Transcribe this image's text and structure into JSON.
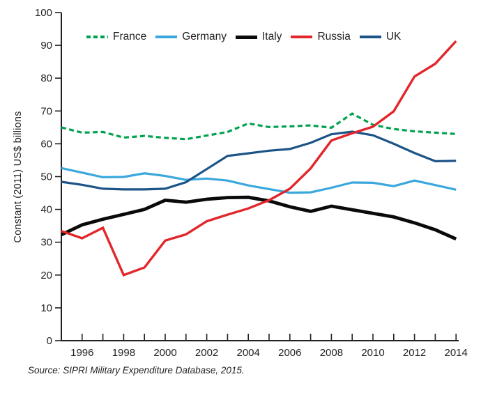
{
  "figure": {
    "y_axis_label": "Constant (2011) US$ billions",
    "source_note": "Source:  SIPRI Military Expenditure Database, 2015."
  },
  "chart_data": {
    "type": "line",
    "title": "",
    "xlabel": "",
    "ylabel": "Constant (2011) US$ billions",
    "source": "Source:  SIPRI Military Expenditure Database, 2015.",
    "grid": false,
    "legend_position": "top-inside",
    "ylim": [
      0,
      100
    ],
    "ytick_step": 10,
    "x": [
      1995,
      1996,
      1997,
      1998,
      1999,
      2000,
      2001,
      2002,
      2003,
      2004,
      2005,
      2006,
      2007,
      2008,
      2009,
      2010,
      2011,
      2012,
      2013,
      2014
    ],
    "x_tick_labels": [
      1996,
      1998,
      2000,
      2002,
      2004,
      2006,
      2008,
      2010,
      2012,
      2014
    ],
    "axis_color": "#231f20",
    "series": [
      {
        "name": "France",
        "color": "#00a24f",
        "width": 3.2,
        "dash": "7 4.5",
        "values": [
          65.0,
          63.4,
          63.6,
          61.9,
          62.4,
          61.8,
          61.4,
          62.5,
          63.6,
          66.2,
          65.1,
          65.3,
          65.6,
          64.9,
          69.2,
          65.8,
          64.5,
          63.8,
          63.4,
          63.0
        ]
      },
      {
        "name": "Germany",
        "color": "#3aa8dc",
        "width": 3.2,
        "dash": "",
        "values": [
          52.6,
          51.2,
          49.8,
          49.9,
          51.0,
          50.2,
          49.0,
          49.4,
          48.8,
          47.3,
          46.2,
          45.1,
          45.2,
          46.6,
          48.2,
          48.1,
          47.1,
          48.8,
          47.4,
          46.0
        ]
      },
      {
        "name": "Italy",
        "color": "#0a0a0a",
        "width": 4.8,
        "dash": "",
        "values": [
          32.3,
          35.3,
          37.0,
          38.5,
          40.0,
          42.8,
          42.2,
          43.1,
          43.6,
          43.7,
          42.6,
          40.8,
          39.4,
          41.0,
          39.9,
          38.8,
          37.7,
          35.9,
          33.8,
          31.0
        ]
      },
      {
        "name": "Russia",
        "color": "#e2262b",
        "width": 3.4,
        "dash": "",
        "values": [
          33.4,
          31.2,
          34.4,
          20.0,
          22.3,
          30.5,
          32.4,
          36.4,
          38.4,
          40.3,
          42.8,
          46.3,
          52.5,
          61.0,
          63.2,
          65.2,
          69.9,
          80.5,
          84.4,
          91.3
        ]
      },
      {
        "name": "UK",
        "color": "#1c5487",
        "width": 3.2,
        "dash": "",
        "values": [
          48.4,
          47.5,
          46.3,
          46.1,
          46.1,
          46.3,
          48.3,
          52.3,
          56.3,
          57.1,
          57.9,
          58.4,
          60.3,
          62.9,
          63.7,
          62.6,
          60.0,
          57.2,
          54.7,
          54.8
        ]
      }
    ]
  }
}
